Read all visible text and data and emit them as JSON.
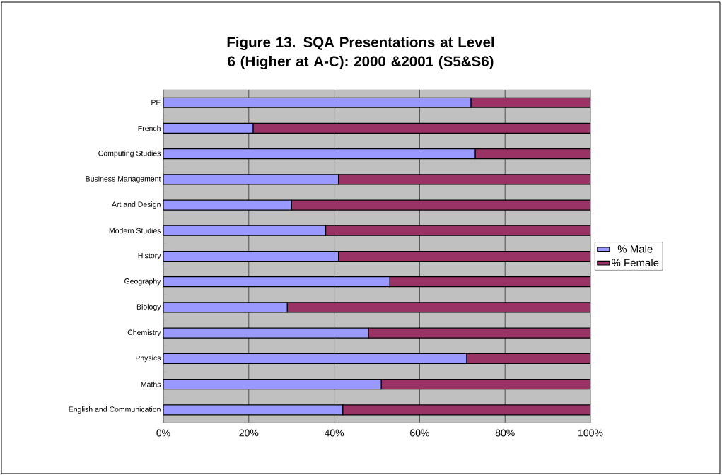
{
  "chart_data": {
    "type": "bar",
    "orientation": "horizontal",
    "stacked": true,
    "title": "Figure 13.  SQA Presentations at Level 6 (Higher at A-C): 2000 &2001 (S5&S6)",
    "categories": [
      "PE",
      "French",
      "Computing Studies",
      "Business Management",
      "Art and Design",
      "Modern Studies",
      "History",
      "Geography",
      "Biology",
      "Chemistry",
      "Physics",
      "Maths",
      "English and Communication"
    ],
    "series": [
      {
        "name": "% Male",
        "color": "#9999ff",
        "values": [
          72,
          21,
          73,
          41,
          30,
          38,
          41,
          53,
          29,
          48,
          71,
          51,
          42
        ]
      },
      {
        "name": "% Female",
        "color": "#993366",
        "values": [
          28,
          79,
          27,
          59,
          70,
          62,
          59,
          47,
          71,
          52,
          29,
          49,
          58
        ]
      }
    ],
    "xlim": [
      0,
      100
    ],
    "xticks": [
      {
        "value": 0,
        "label": "0%"
      },
      {
        "value": 20,
        "label": "20%"
      },
      {
        "value": 40,
        "label": "40%"
      },
      {
        "value": 60,
        "label": "60%"
      },
      {
        "value": 80,
        "label": "80%"
      },
      {
        "value": 100,
        "label": "100%"
      }
    ],
    "grid": "x",
    "legend": "right"
  }
}
